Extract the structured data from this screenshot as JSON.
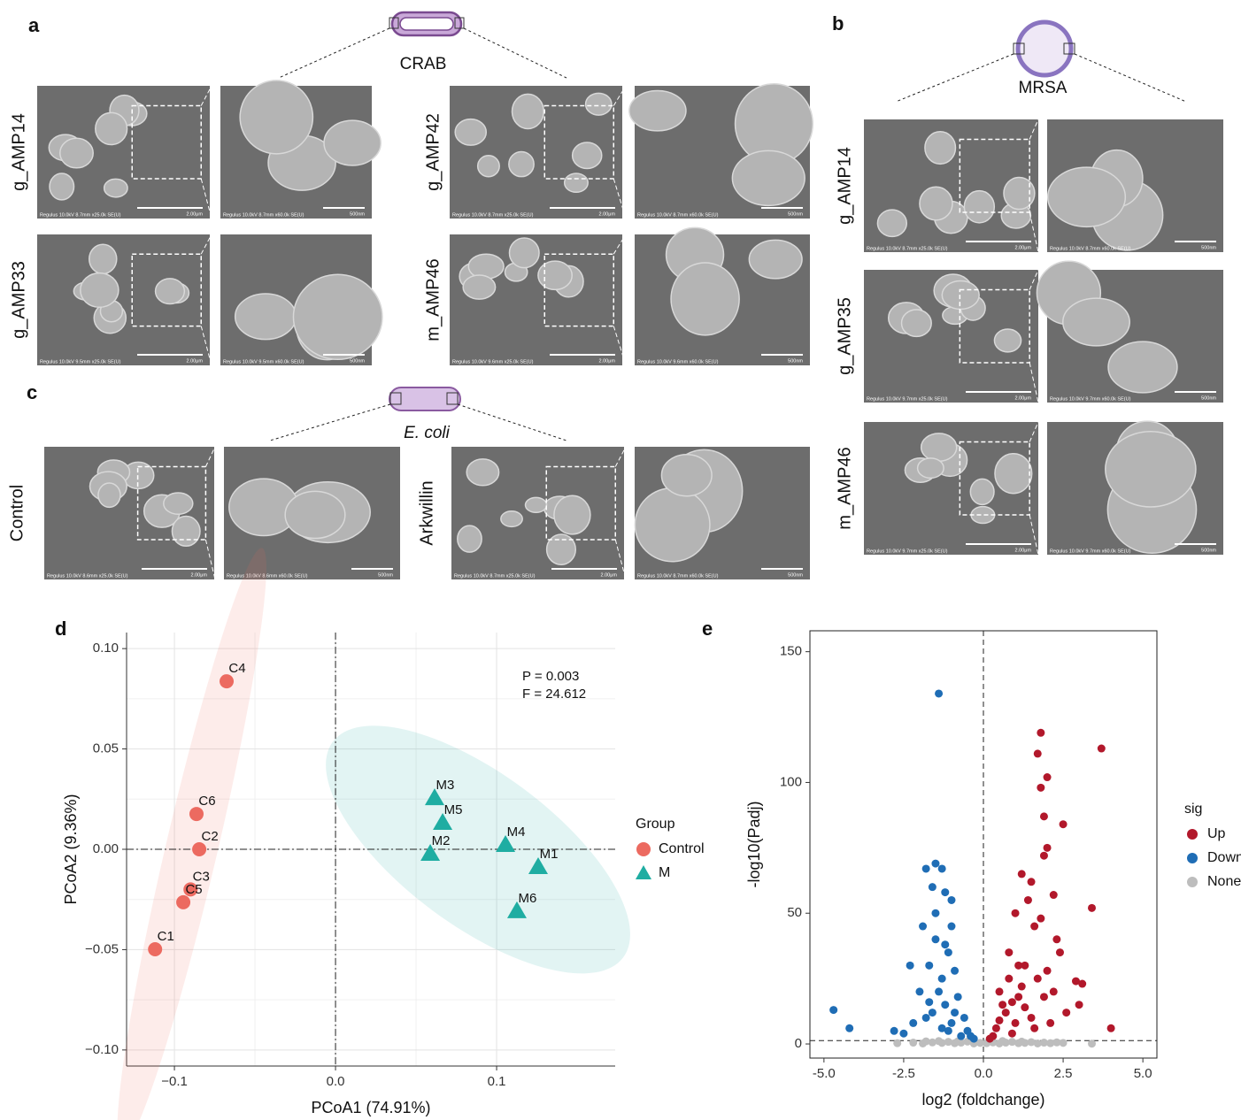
{
  "panels": {
    "a": {
      "label": "a",
      "organism": "CRAB",
      "rows": [
        "g_AMP14",
        "g_AMP33",
        "g_AMP42",
        "m_AMP46"
      ],
      "images": [
        {
          "caption": "Regulus 10.0kV 8.7mm x25.0k SE(U)",
          "scale": "2.00μm"
        },
        {
          "caption": "Regulus 10.0kV 8.7mm x60.0k SE(U)",
          "scale": "500nm"
        },
        {
          "caption": "Regulus 10.0kV 9.5mm x25.0k SE(U)",
          "scale": "2.00μm"
        },
        {
          "caption": "Regulus 10.0kV 9.5mm x60.0k SE(U)",
          "scale": "500nm"
        },
        {
          "caption": "Regulus 10.0kV 8.7mm x25.0k SE(U)",
          "scale": "2.00μm"
        },
        {
          "caption": "Regulus 10.0kV 8.7mm x60.0k SE(U)",
          "scale": "500nm"
        },
        {
          "caption": "Regulus 10.0kV 9.6mm x25.0k SE(U)",
          "scale": "2.00μm"
        },
        {
          "caption": "Regulus 10.0kV 9.6mm x60.0k SE(U)",
          "scale": "500nm"
        }
      ]
    },
    "b": {
      "label": "b",
      "organism": "MRSA",
      "rows": [
        "g_AMP14",
        "g_AMP35",
        "m_AMP46"
      ],
      "images": [
        {
          "caption": "Regulus 10.0kV 8.7mm x25.0k SE(U)",
          "scale": "2.00μm"
        },
        {
          "caption": "Regulus 10.0kV 8.7mm x60.0k SE(U)",
          "scale": "500nm"
        },
        {
          "caption": "Regulus 10.0kV 9.7mm x25.0k SE(U)",
          "scale": "2.00μm"
        },
        {
          "caption": "Regulus 10.0kV 9.7mm x60.0k SE(U)",
          "scale": "500nm"
        },
        {
          "caption": "Regulus 10.0kV 9.7mm x25.0k SE(U)",
          "scale": "2.00μm"
        },
        {
          "caption": "Regulus 10.0kV 9.7mm x60.0k SE(U)",
          "scale": "500nm"
        }
      ]
    },
    "c": {
      "label": "c",
      "organism": "E. coli",
      "rows": [
        "Control",
        "Arkwillin"
      ],
      "images": [
        {
          "caption": "Regulus 10.0kV 8.6mm x25.0k SE(U)",
          "scale": "2.00μm"
        },
        {
          "caption": "Regulus 10.0kV 8.6mm x60.0k SE(U)",
          "scale": "500nm"
        },
        {
          "caption": "Regulus 10.0kV 8.7mm x25.0k SE(U)",
          "scale": "2.00μm"
        },
        {
          "caption": "Regulus 10.0kV 8.7mm x60.0k SE(U)",
          "scale": "500nm"
        }
      ]
    }
  },
  "chart_data": [
    {
      "type": "scatter",
      "panel": "d",
      "xlabel": "PCoA1 (74.91%)",
      "ylabel": "PCoA2 (9.36%)",
      "xlim": [
        -0.1297,
        0.1736
      ],
      "ylim": [
        -0.108,
        0.108
      ],
      "xticks": [
        {
          "value": -0.1,
          "label": "−0.1"
        },
        {
          "value": 0,
          "label": "0.0"
        },
        {
          "value": 0.1,
          "label": "0.1"
        }
      ],
      "yticks": [
        {
          "value": -0.1,
          "label": "−0.10"
        },
        {
          "value": -0.05,
          "label": "−0.05"
        },
        {
          "value": 0,
          "label": "0.00"
        },
        {
          "value": 0.05,
          "label": "0.05"
        },
        {
          "value": 0.1,
          "label": "0.10"
        }
      ],
      "grid": true,
      "vline": 0,
      "hline": 0,
      "ellipse": true,
      "annotations": [
        "P = 0.003",
        "F = 24.612"
      ],
      "legend_title": "Group",
      "series": [
        {
          "name": "Control",
          "color": "#ec6a60",
          "marker": "circle",
          "labels": [
            "C1",
            "C2",
            "C3",
            "C4",
            "C5",
            "C6"
          ],
          "x": [
            -0.112,
            -0.0846,
            -0.09,
            -0.0676,
            -0.0945,
            -0.0863
          ],
          "values": [
            -0.0498,
            0,
            -0.02,
            0.0837,
            -0.0264,
            0.0176
          ]
        },
        {
          "name": "M",
          "color": "#1fada2",
          "marker": "triangle",
          "labels": [
            "M1",
            "M2",
            "M3",
            "M4",
            "M5",
            "M6"
          ],
          "x": [
            0.1258,
            0.0588,
            0.0615,
            0.1055,
            0.0665,
            0.1126
          ],
          "values": [
            -0.0088,
            -0.0022,
            0.0255,
            0.0022,
            0.0132,
            -0.0308
          ]
        }
      ]
    },
    {
      "type": "scatter",
      "panel": "e",
      "xlabel": "log2 (foldchange)",
      "ylabel": "-log10(Padj)",
      "xlim": [
        -5.44,
        5.44
      ],
      "ylim": [
        -5.4,
        158
      ],
      "xticks": [
        {
          "value": -5,
          "label": "-5.0"
        },
        {
          "value": -2.5,
          "label": "-2.5"
        },
        {
          "value": 0,
          "label": "0.0"
        },
        {
          "value": 2.5,
          "label": "2.5"
        },
        {
          "value": 5,
          "label": "5.0"
        }
      ],
      "yticks": [
        0,
        50,
        100,
        150
      ],
      "grid": false,
      "frame": true,
      "vline": 0,
      "hline": 1.3,
      "legend_title": "sig",
      "series": [
        {
          "name": "Up",
          "color": "#b2182b",
          "marker": "circle",
          "x": [
            1.8,
            3.7,
            1.7,
            2.0,
            1.8,
            1.9,
            2.5,
            2.0,
            1.9,
            1.2,
            1.5,
            2.2,
            3.4,
            1.0,
            1.6,
            2.3,
            0.8,
            1.3,
            2.0,
            3.1,
            3.0,
            4.0,
            0.5,
            1.1,
            0.7,
            1.5,
            0.4,
            2.1,
            0.9,
            1.7,
            1.2,
            0.6,
            2.4,
            1.8,
            1.4,
            0.3,
            2.6,
            1.0,
            2.9,
            2.2,
            0.8,
            1.3,
            0.5,
            1.9,
            1.1,
            0.2,
            1.6,
            0.9
          ],
          "values": [
            119,
            113,
            111,
            102,
            98,
            87,
            84,
            75,
            72,
            65,
            62,
            57,
            52,
            50,
            45,
            40,
            35,
            30,
            28,
            23,
            15,
            6,
            20,
            18,
            12,
            10,
            6,
            8,
            4,
            25,
            22,
            15,
            35,
            48,
            55,
            3,
            12,
            8,
            24,
            20,
            25,
            14,
            9,
            18,
            30,
            2,
            6,
            16
          ]
        },
        {
          "name": "Down",
          "color": "#1f6db5",
          "marker": "circle",
          "x": [
            -4.7,
            -4.2,
            -1.4,
            -1.8,
            -1.5,
            -1.3,
            -1.6,
            -1.2,
            -1.0,
            -2.5,
            -2.8,
            -1.9,
            -1.5,
            -1.1,
            -1.7,
            -0.9,
            -1.3,
            -2.0,
            -0.8,
            -1.2,
            -1.6,
            -0.6,
            -1.0,
            -0.5,
            -2.2,
            -1.4,
            -0.7,
            -1.8,
            -1.1,
            -0.4,
            -1.5,
            -1.0,
            -2.3,
            -1.2,
            -0.9,
            -1.3,
            -0.3,
            -1.7
          ],
          "values": [
            13,
            6,
            134,
            67,
            69,
            67,
            60,
            58,
            55,
            4,
            5,
            45,
            40,
            35,
            30,
            28,
            25,
            20,
            18,
            15,
            12,
            10,
            8,
            5,
            8,
            20,
            3,
            10,
            5,
            3,
            50,
            45,
            30,
            38,
            12,
            6,
            2,
            16
          ]
        },
        {
          "name": "None",
          "color": "#bdbdbd",
          "marker": "circle",
          "x": [
            -2.7,
            -2.2,
            -1.9,
            -1.6,
            -1.3,
            -1.1,
            -0.9,
            -0.7,
            -0.5,
            -0.3,
            -0.1,
            0.1,
            0.3,
            0.5,
            0.7,
            0.9,
            1.1,
            1.3,
            1.5,
            1.7,
            1.9,
            2.1,
            2.3,
            2.5,
            3.4,
            -1.8,
            -1.4,
            -0.8,
            0.6,
            1.2
          ],
          "values": [
            0.3,
            0.5,
            0.2,
            0.6,
            0.4,
            0.8,
            0.3,
            0.5,
            0.9,
            0.2,
            0.4,
            0.3,
            0.6,
            0.2,
            0.5,
            0.8,
            0.3,
            0.4,
            0.7,
            0.2,
            0.5,
            0.3,
            0.6,
            0.4,
            0.1,
            1.0,
            1.1,
            1.0,
            1.1,
            0.9
          ]
        }
      ]
    }
  ]
}
